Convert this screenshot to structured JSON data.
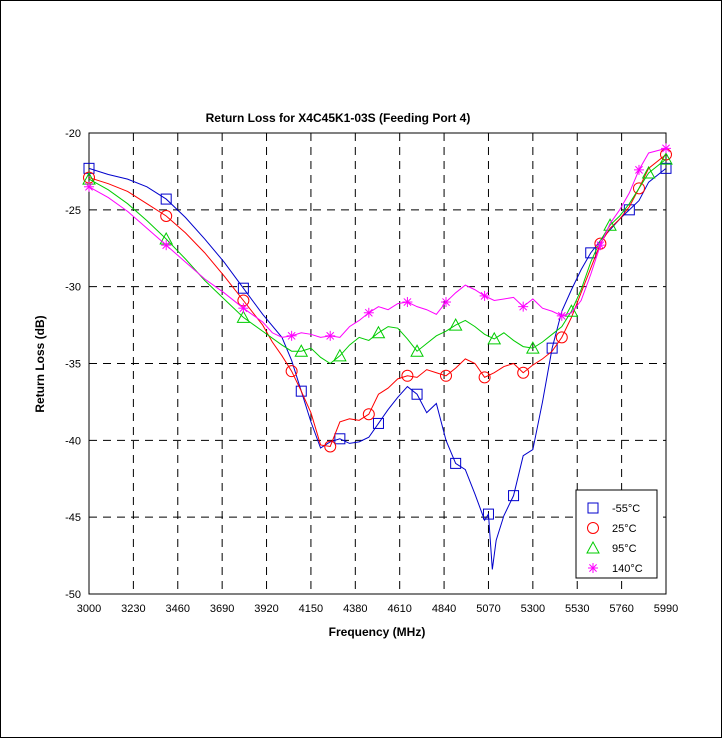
{
  "chart_data": {
    "type": "line",
    "title": "Return Loss for X4C45K1-03S (Feeding Port 4)",
    "xlabel": "Frequency (MHz)",
    "ylabel": "Return Loss (dB)",
    "xlim": [
      3000,
      5990
    ],
    "ylim": [
      -50,
      -20
    ],
    "x_ticks": [
      3000,
      3230,
      3460,
      3690,
      3920,
      4150,
      4380,
      4610,
      4840,
      5070,
      5300,
      5530,
      5760,
      5990
    ],
    "y_ticks": [
      -20,
      -25,
      -30,
      -35,
      -40,
      -45,
      -50
    ],
    "grid": true,
    "legend_position": "bottom-right",
    "series": [
      {
        "name": "-55°C",
        "color": "#0000cc",
        "marker": "square",
        "x": [
          3000,
          3100,
          3200,
          3300,
          3400,
          3500,
          3600,
          3700,
          3800,
          3900,
          4000,
          4050,
          4100,
          4150,
          4200,
          4250,
          4300,
          4350,
          4400,
          4450,
          4500,
          4550,
          4600,
          4650,
          4700,
          4750,
          4800,
          4850,
          4900,
          4950,
          5000,
          5050,
          5070,
          5090,
          5110,
          5150,
          5200,
          5250,
          5300,
          5350,
          5400,
          5450,
          5500,
          5550,
          5600,
          5650,
          5700,
          5750,
          5800,
          5850,
          5900,
          5990
        ],
        "y": [
          -22.3,
          -22.7,
          -23.0,
          -23.5,
          -24.3,
          -25.5,
          -26.9,
          -28.4,
          -30.1,
          -31.8,
          -33.3,
          -34.8,
          -36.8,
          -38.8,
          -40.5,
          -40.1,
          -39.9,
          -40.2,
          -40.1,
          -39.8,
          -38.9,
          -38.0,
          -37.2,
          -36.5,
          -37.0,
          -38.2,
          -37.6,
          -40.0,
          -41.5,
          -41.9,
          -43.5,
          -45.2,
          -44.8,
          -48.4,
          -46.5,
          -44.9,
          -43.6,
          -41.0,
          -40.6,
          -37.5,
          -34.0,
          -31.6,
          -30.2,
          -28.9,
          -27.8,
          -27.0,
          -26.3,
          -25.6,
          -25.0,
          -24.4,
          -23.2,
          -22.3
        ]
      },
      {
        "name": "25°C",
        "color": "#ff0000",
        "marker": "circle",
        "x": [
          3000,
          3100,
          3200,
          3300,
          3400,
          3500,
          3600,
          3700,
          3800,
          3900,
          3950,
          4000,
          4050,
          4100,
          4150,
          4200,
          4250,
          4300,
          4350,
          4400,
          4450,
          4500,
          4550,
          4600,
          4650,
          4700,
          4750,
          4800,
          4850,
          4900,
          4950,
          5000,
          5050,
          5100,
          5150,
          5200,
          5250,
          5300,
          5350,
          5400,
          5450,
          5500,
          5550,
          5600,
          5650,
          5700,
          5750,
          5800,
          5850,
          5900,
          5990
        ],
        "y": [
          -22.9,
          -23.3,
          -23.8,
          -24.6,
          -25.4,
          -26.5,
          -27.8,
          -29.3,
          -30.9,
          -32.5,
          -33.6,
          -34.5,
          -35.5,
          -36.8,
          -38.2,
          -40.3,
          -40.4,
          -38.8,
          -38.6,
          -38.7,
          -38.3,
          -37.0,
          -36.6,
          -36.0,
          -35.8,
          -35.9,
          -35.4,
          -35.6,
          -35.8,
          -35.3,
          -34.7,
          -35.0,
          -35.9,
          -35.6,
          -35.2,
          -35.0,
          -35.6,
          -35.1,
          -34.7,
          -34.2,
          -33.3,
          -32.0,
          -30.4,
          -28.8,
          -27.2,
          -26.2,
          -25.6,
          -24.8,
          -23.6,
          -22.3,
          -21.4
        ]
      },
      {
        "name": "95°C",
        "color": "#00cc00",
        "marker": "triangle",
        "x": [
          3000,
          3100,
          3200,
          3300,
          3400,
          3500,
          3600,
          3700,
          3800,
          3900,
          4000,
          4050,
          4100,
          4150,
          4200,
          4250,
          4300,
          4350,
          4400,
          4450,
          4500,
          4550,
          4600,
          4650,
          4700,
          4750,
          4800,
          4850,
          4900,
          4950,
          5000,
          5050,
          5100,
          5150,
          5200,
          5250,
          5300,
          5350,
          5400,
          5450,
          5500,
          5550,
          5600,
          5650,
          5700,
          5750,
          5800,
          5850,
          5900,
          5990
        ],
        "y": [
          -23.0,
          -23.7,
          -24.6,
          -25.7,
          -26.9,
          -28.2,
          -29.6,
          -30.8,
          -32.0,
          -32.9,
          -33.8,
          -34.2,
          -34.2,
          -34.0,
          -34.6,
          -35.0,
          -34.5,
          -33.8,
          -33.3,
          -33.5,
          -33.0,
          -32.6,
          -32.7,
          -33.4,
          -34.2,
          -33.7,
          -33.2,
          -32.9,
          -32.5,
          -32.2,
          -32.6,
          -33.1,
          -33.4,
          -33.0,
          -33.5,
          -33.9,
          -34.0,
          -33.6,
          -33.1,
          -32.6,
          -31.6,
          -30.2,
          -28.4,
          -27.0,
          -26.0,
          -25.4,
          -24.6,
          -23.6,
          -22.6,
          -21.7
        ]
      },
      {
        "name": "140°C",
        "color": "#ff00ff",
        "marker": "asterisk",
        "x": [
          3000,
          3100,
          3200,
          3300,
          3400,
          3500,
          3600,
          3700,
          3800,
          3900,
          3950,
          4000,
          4050,
          4100,
          4150,
          4200,
          4250,
          4300,
          4350,
          4400,
          4450,
          4500,
          4550,
          4600,
          4650,
          4700,
          4750,
          4800,
          4850,
          4900,
          4950,
          5000,
          5050,
          5100,
          5150,
          5200,
          5250,
          5300,
          5350,
          5400,
          5450,
          5500,
          5550,
          5600,
          5650,
          5700,
          5750,
          5800,
          5850,
          5900,
          5990
        ],
        "y": [
          -23.5,
          -24.2,
          -25.1,
          -26.2,
          -27.3,
          -28.4,
          -29.5,
          -30.4,
          -31.4,
          -32.3,
          -33.0,
          -33.3,
          -33.2,
          -33.0,
          -33.1,
          -33.3,
          -33.2,
          -33.3,
          -32.6,
          -32.2,
          -31.7,
          -31.3,
          -31.5,
          -31.1,
          -31.0,
          -31.3,
          -31.5,
          -31.8,
          -31.0,
          -30.4,
          -29.9,
          -30.2,
          -30.6,
          -30.9,
          -30.8,
          -30.7,
          -31.3,
          -30.8,
          -31.4,
          -31.6,
          -31.9,
          -31.7,
          -30.9,
          -29.2,
          -27.3,
          -25.9,
          -25.0,
          -23.9,
          -22.4,
          -21.3,
          -21.0
        ]
      }
    ]
  }
}
